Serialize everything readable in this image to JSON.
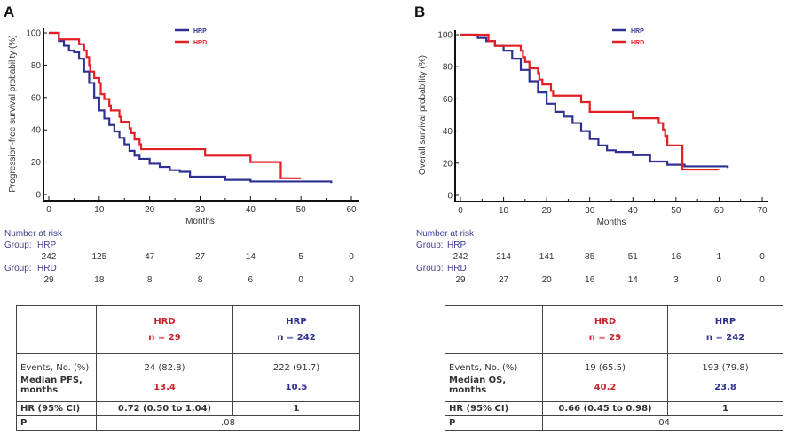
{
  "chart_data": [
    {
      "panel": "A",
      "type": "line",
      "ylabel": "Progression-free survival probability (%)",
      "xlabel": "Months",
      "xlim": [
        0,
        60
      ],
      "ylim": [
        0,
        100
      ],
      "xticks": [
        0,
        10,
        20,
        30,
        40,
        50,
        60
      ],
      "yticks": [
        0,
        20,
        40,
        60,
        80,
        100
      ],
      "grid": false,
      "legend_position": "top-center",
      "series": [
        {
          "name": "HRP",
          "color": "#2e3192",
          "points": [
            [
              0,
              100
            ],
            [
              2,
              95
            ],
            [
              3,
              92
            ],
            [
              4,
              89
            ],
            [
              5,
              88
            ],
            [
              6,
              84
            ],
            [
              7,
              76
            ],
            [
              8,
              69
            ],
            [
              9,
              60
            ],
            [
              10,
              52
            ],
            [
              11,
              47
            ],
            [
              12,
              43
            ],
            [
              13,
              39
            ],
            [
              14,
              35
            ],
            [
              15,
              31
            ],
            [
              16,
              27
            ],
            [
              17,
              24
            ],
            [
              18,
              22
            ],
            [
              20,
              19
            ],
            [
              22,
              17
            ],
            [
              24,
              15
            ],
            [
              26,
              14
            ],
            [
              28,
              11
            ],
            [
              32,
              11
            ],
            [
              35,
              9
            ],
            [
              40,
              8
            ],
            [
              46,
              8
            ],
            [
              56,
              7
            ]
          ]
        },
        {
          "name": "HRD",
          "color": "#e31e24",
          "points": [
            [
              0,
              100
            ],
            [
              2,
              96
            ],
            [
              6,
              93
            ],
            [
              7,
              89
            ],
            [
              7.5,
              85
            ],
            [
              8,
              80
            ],
            [
              8.2,
              76
            ],
            [
              9,
              72
            ],
            [
              10,
              69
            ],
            [
              10.3,
              62
            ],
            [
              11,
              59
            ],
            [
              12,
              55
            ],
            [
              12.3,
              52
            ],
            [
              14,
              48
            ],
            [
              14.3,
              45
            ],
            [
              16,
              41
            ],
            [
              16.3,
              38
            ],
            [
              17,
              34
            ],
            [
              18,
              31
            ],
            [
              18.3,
              28
            ],
            [
              31,
              24
            ],
            [
              40,
              20
            ],
            [
              46,
              10
            ],
            [
              50,
              10
            ]
          ]
        }
      ],
      "risk_table": {
        "title": "Number at risk",
        "groups": [
          {
            "prefix": "Group:",
            "name": "HRP",
            "values": [
              242,
              125,
              47,
              27,
              14,
              5,
              0
            ]
          },
          {
            "prefix": "Group:",
            "name": "HRD",
            "values": [
              29,
              18,
              8,
              8,
              6,
              0,
              0
            ]
          }
        ]
      }
    },
    {
      "panel": "B",
      "type": "line",
      "ylabel": "Overall survival probability (%)",
      "xlabel": "Months",
      "xlim": [
        0,
        70
      ],
      "ylim": [
        0,
        100
      ],
      "xticks": [
        0,
        10,
        20,
        30,
        40,
        50,
        60,
        70
      ],
      "yticks": [
        0,
        20,
        40,
        60,
        80,
        100
      ],
      "grid": false,
      "legend_position": "top-center",
      "series": [
        {
          "name": "HRP",
          "color": "#2e3192",
          "points": [
            [
              0,
              100
            ],
            [
              4,
              98
            ],
            [
              6,
              96
            ],
            [
              8,
              93
            ],
            [
              10,
              90
            ],
            [
              12,
              85
            ],
            [
              14,
              78
            ],
            [
              16,
              71
            ],
            [
              18,
              64
            ],
            [
              20,
              57
            ],
            [
              22,
              52
            ],
            [
              24,
              49
            ],
            [
              26,
              45
            ],
            [
              28,
              40
            ],
            [
              30,
              35
            ],
            [
              32,
              31
            ],
            [
              34,
              28
            ],
            [
              36,
              27
            ],
            [
              40,
              25
            ],
            [
              44,
              21
            ],
            [
              48,
              19
            ],
            [
              52,
              18
            ],
            [
              62,
              17
            ]
          ]
        },
        {
          "name": "HRD",
          "color": "#e31e24",
          "points": [
            [
              0,
              100
            ],
            [
              6.5,
              96
            ],
            [
              8,
              93
            ],
            [
              14,
              90
            ],
            [
              14.5,
              86
            ],
            [
              15,
              83
            ],
            [
              16,
              79
            ],
            [
              18,
              76
            ],
            [
              18.3,
              72
            ],
            [
              19,
              69
            ],
            [
              21,
              65
            ],
            [
              21.5,
              62
            ],
            [
              28,
              58
            ],
            [
              30,
              52
            ],
            [
              40,
              48
            ],
            [
              46,
              45
            ],
            [
              47,
              41
            ],
            [
              47.5,
              37
            ],
            [
              48,
              31
            ],
            [
              51.5,
              16
            ],
            [
              60,
              16
            ]
          ]
        }
      ],
      "risk_table": {
        "title": "Number at risk",
        "groups": [
          {
            "prefix": "Group:",
            "name": "HRP",
            "values": [
              242,
              214,
              141,
              85,
              51,
              16,
              1,
              0
            ]
          },
          {
            "prefix": "Group:",
            "name": "HRD",
            "values": [
              29,
              27,
              20,
              16,
              14,
              3,
              0,
              0
            ]
          }
        ]
      }
    }
  ],
  "tables": {
    "A": {
      "hrd_label": "HRD",
      "hrd_n": "n = 29",
      "hrp_label": "HRP",
      "hrp_n": "n = 242",
      "events_label": "Events, No. (%)",
      "events_hrd": "24 (82.8)",
      "events_hrp": "222 (91.7)",
      "median_label_1": "Median PFS,",
      "median_label_2": "months",
      "median_hrd": "13.4",
      "median_hrp": "10.5",
      "hr_label": "HR (95% CI)",
      "hr_hrd": "0.72 (0.50 to 1.04)",
      "hr_hrp": "1",
      "p_label": "P",
      "p_value": ".08"
    },
    "B": {
      "hrd_label": "HRD",
      "hrd_n": "n = 29",
      "hrp_label": "HRP",
      "hrp_n": "n = 242",
      "events_label": "Events, No. (%)",
      "events_hrd": "19 (65.5)",
      "events_hrp": "193 (79.8)",
      "median_label_1": "Median OS,",
      "median_label_2": "months",
      "median_hrd": "40.2",
      "median_hrp": "23.8",
      "hr_label": "HR (95% CI)",
      "hr_hrd": "0.66 (0.45 to 0.98)",
      "hr_hrp": "1",
      "p_label": "P",
      "p_value": ".04"
    }
  }
}
